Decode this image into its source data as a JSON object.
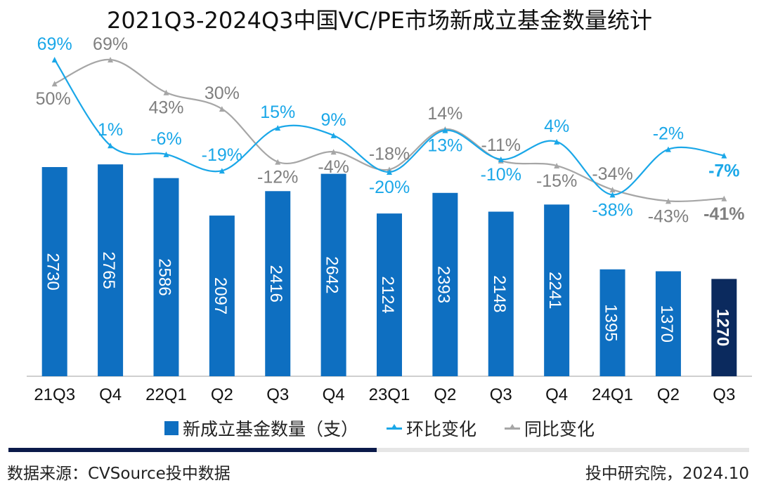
{
  "chart_data": {
    "type": "bar",
    "title": "2021Q3-2024Q3中国VC/PE市场新成立基金数量统计",
    "categories": [
      "21Q3",
      "Q4",
      "22Q1",
      "Q2",
      "Q3",
      "Q4",
      "23Q1",
      "Q2",
      "Q3",
      "Q4",
      "24Q1",
      "Q2",
      "Q3"
    ],
    "series": [
      {
        "name": "新成立基金数量（支）",
        "type": "bar",
        "color": "#0E6FC1",
        "highlight_color": "#0B2A5E",
        "values": [
          2730,
          2765,
          2586,
          2097,
          2416,
          2642,
          2124,
          2393,
          2148,
          2241,
          1395,
          1370,
          1270
        ]
      },
      {
        "name": "环比变化",
        "type": "line",
        "color": "#1AA7E8",
        "values": [
          69,
          1,
          -6,
          -19,
          15,
          9,
          -20,
          13,
          -10,
          4,
          -38,
          -2,
          -7
        ],
        "labels": [
          "69%",
          "1%",
          "-6%",
          "-19%",
          "15%",
          "9%",
          "-20%",
          "13%",
          "-10%",
          "4%",
          "-38%",
          "-2%",
          "-7%"
        ]
      },
      {
        "name": "同比变化",
        "type": "line",
        "color": "#A6A6A6",
        "values": [
          50,
          69,
          43,
          30,
          -12,
          -4,
          -18,
          14,
          -11,
          -15,
          -34,
          -43,
          -41
        ],
        "labels": [
          "50%",
          "69%",
          "43%",
          "30%",
          "-12%",
          "-4%",
          "-18%",
          "14%",
          "-11%",
          "-15%",
          "-34%",
          "-43%",
          "-41%"
        ]
      }
    ],
    "xlabel": "",
    "ylabel": "",
    "legend": "bottom"
  },
  "footer": {
    "source": "数据来源：CVSource投中数据",
    "credit": "投中研究院，2024.10"
  }
}
